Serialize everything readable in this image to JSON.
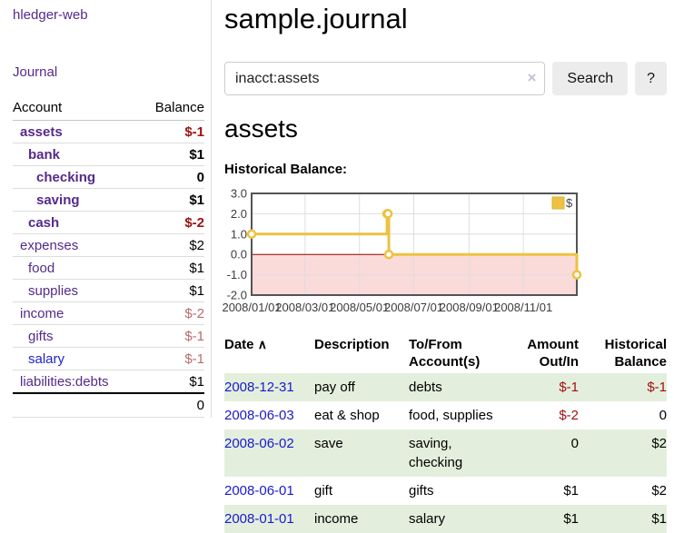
{
  "sidebar": {
    "brand": "hledger-web",
    "nav": {
      "journal": "Journal"
    },
    "accounts_table": {
      "headers": {
        "account": "Account",
        "balance": "Balance"
      },
      "rows": [
        {
          "name": "assets",
          "balance": "$-1"
        },
        {
          "name": "bank",
          "balance": "$1"
        },
        {
          "name": "checking",
          "balance": "0"
        },
        {
          "name": "saving",
          "balance": "$1"
        },
        {
          "name": "cash",
          "balance": "$-2"
        },
        {
          "name": "expenses",
          "balance": "$2"
        },
        {
          "name": "food",
          "balance": "$1"
        },
        {
          "name": "supplies",
          "balance": "$1"
        },
        {
          "name": "income",
          "balance": "$-2"
        },
        {
          "name": "gifts",
          "balance": "$-1"
        },
        {
          "name": "salary",
          "balance": "$-1"
        },
        {
          "name": "liabilities:debts",
          "balance": "$1"
        }
      ],
      "total": "0"
    }
  },
  "header": {
    "title": "sample.journal"
  },
  "search": {
    "value": "inacct:assets",
    "clear_icon": "×",
    "button_label": "Search",
    "help_label": "?"
  },
  "account_page": {
    "heading": "assets",
    "chart_title": "Historical Balance:"
  },
  "chart_data": {
    "type": "line",
    "title": "Historical Balance",
    "step": true,
    "series": [
      {
        "name": "$",
        "color": "#edc240",
        "points": [
          {
            "date": "2008-01-01",
            "value": 1
          },
          {
            "date": "2008-06-01",
            "value": 2
          },
          {
            "date": "2008-06-02",
            "value": 2
          },
          {
            "date": "2008-06-03",
            "value": 0
          },
          {
            "date": "2008-12-31",
            "value": -1
          }
        ]
      }
    ],
    "xlim": [
      "2008-01-01",
      "2008-12-31"
    ],
    "ylim": [
      -2.0,
      3.0
    ],
    "yticks": [
      3.0,
      2.0,
      1.0,
      0.0,
      -1.0,
      -2.0
    ],
    "ytick_labels": [
      "3.0",
      "2.0",
      "1.0",
      "0.0",
      "-1.0",
      "-2.0"
    ],
    "xticks": [
      "2008-01-01",
      "2008-03-01",
      "2008-05-01",
      "2008-07-01",
      "2008-09-01",
      "2008-11-01"
    ],
    "xtick_labels": [
      "2008/01/01",
      "2008/03/01",
      "2008/05/01",
      "2008/07/01",
      "2008/09/01",
      "2008/11/01"
    ],
    "legend": {
      "label": "$",
      "position": "top-right"
    },
    "grid": true,
    "negative_region_fill": "#fbdada",
    "zero_line_color": "#8b0000",
    "grid_color": "#dedede",
    "border_color": "#545454"
  },
  "register": {
    "headers": {
      "date": "Date",
      "sort_icon": "∧",
      "description": "Description",
      "accounts": "To/From\nAccount(s)",
      "amount": "Amount\nOut/In",
      "balance": "Historical\nBalance"
    },
    "rows": [
      {
        "date": "2008-12-31",
        "description": "pay off",
        "accounts": "debts",
        "amount": "$-1",
        "balance": "$-1"
      },
      {
        "date": "2008-06-03",
        "description": "eat & shop",
        "accounts": "food, supplies",
        "amount": "$-2",
        "balance": "0"
      },
      {
        "date": "2008-06-02",
        "description": "save",
        "accounts": "saving,\nchecking",
        "amount": "0",
        "balance": "$2"
      },
      {
        "date": "2008-06-01",
        "description": "gift",
        "accounts": "gifts",
        "amount": "$1",
        "balance": "$2"
      },
      {
        "date": "2008-01-01",
        "description": "income",
        "accounts": "salary",
        "amount": "$1",
        "balance": "$1"
      }
    ]
  }
}
